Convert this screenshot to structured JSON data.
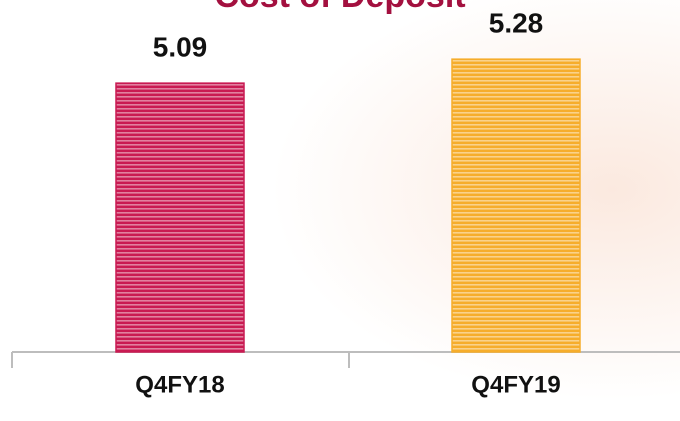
{
  "chart_data": {
    "type": "bar",
    "title": "Cost of Deposit",
    "categories": [
      "Q4FY18",
      "Q4FY19"
    ],
    "values": [
      5.09,
      5.28
    ],
    "colors": [
      "#c91a52",
      "#f6ad2b"
    ],
    "ylim": [
      2.96,
      5.4
    ]
  }
}
